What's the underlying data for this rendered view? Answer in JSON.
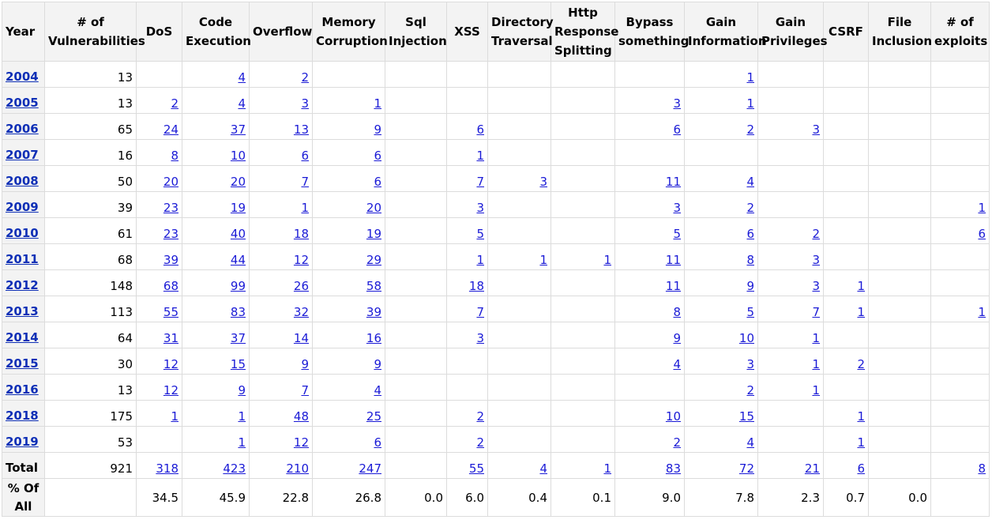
{
  "headers": [
    "Year",
    "# of Vulnerabilities",
    "DoS",
    "Code Execution",
    "Overflow",
    "Memory Corruption",
    "Sql Injection",
    "XSS",
    "Directory Traversal",
    "Http Response Splitting",
    "Bypass something",
    "Gain Information",
    "Gain Privileges",
    "CSRF",
    "File Inclusion",
    "# of exploits"
  ],
  "rows": [
    {
      "year": "2004",
      "cells": [
        "13",
        "",
        "4",
        "2",
        "",
        "",
        "",
        "",
        "",
        "",
        "1",
        "",
        "",
        "",
        ""
      ]
    },
    {
      "year": "2005",
      "cells": [
        "13",
        "2",
        "4",
        "3",
        "1",
        "",
        "",
        "",
        "",
        "3",
        "1",
        "",
        "",
        "",
        ""
      ]
    },
    {
      "year": "2006",
      "cells": [
        "65",
        "24",
        "37",
        "13",
        "9",
        "",
        "6",
        "",
        "",
        "6",
        "2",
        "3",
        "",
        "",
        ""
      ]
    },
    {
      "year": "2007",
      "cells": [
        "16",
        "8",
        "10",
        "6",
        "6",
        "",
        "1",
        "",
        "",
        "",
        "",
        "",
        "",
        "",
        ""
      ]
    },
    {
      "year": "2008",
      "cells": [
        "50",
        "20",
        "20",
        "7",
        "6",
        "",
        "7",
        "3",
        "",
        "11",
        "4",
        "",
        "",
        "",
        ""
      ]
    },
    {
      "year": "2009",
      "cells": [
        "39",
        "23",
        "19",
        "1",
        "20",
        "",
        "3",
        "",
        "",
        "3",
        "2",
        "",
        "",
        "",
        "1"
      ]
    },
    {
      "year": "2010",
      "cells": [
        "61",
        "23",
        "40",
        "18",
        "19",
        "",
        "5",
        "",
        "",
        "5",
        "6",
        "2",
        "",
        "",
        "6"
      ]
    },
    {
      "year": "2011",
      "cells": [
        "68",
        "39",
        "44",
        "12",
        "29",
        "",
        "1",
        "1",
        "1",
        "11",
        "8",
        "3",
        "",
        "",
        ""
      ]
    },
    {
      "year": "2012",
      "cells": [
        "148",
        "68",
        "99",
        "26",
        "58",
        "",
        "18",
        "",
        "",
        "11",
        "9",
        "3",
        "1",
        "",
        ""
      ]
    },
    {
      "year": "2013",
      "cells": [
        "113",
        "55",
        "83",
        "32",
        "39",
        "",
        "7",
        "",
        "",
        "8",
        "5",
        "7",
        "1",
        "",
        "1"
      ]
    },
    {
      "year": "2014",
      "cells": [
        "64",
        "31",
        "37",
        "14",
        "16",
        "",
        "3",
        "",
        "",
        "9",
        "10",
        "1",
        "",
        "",
        ""
      ]
    },
    {
      "year": "2015",
      "cells": [
        "30",
        "12",
        "15",
        "9",
        "9",
        "",
        "",
        "",
        "",
        "4",
        "3",
        "1",
        "2",
        "",
        ""
      ]
    },
    {
      "year": "2016",
      "cells": [
        "13",
        "12",
        "9",
        "7",
        "4",
        "",
        "",
        "",
        "",
        "",
        "2",
        "1",
        "",
        "",
        ""
      ]
    },
    {
      "year": "2018",
      "cells": [
        "175",
        "1",
        "1",
        "48",
        "25",
        "",
        "2",
        "",
        "",
        "10",
        "15",
        "",
        "1",
        "",
        ""
      ]
    },
    {
      "year": "2019",
      "cells": [
        "53",
        "",
        "1",
        "12",
        "6",
        "",
        "2",
        "",
        "",
        "2",
        "4",
        "",
        "1",
        "",
        ""
      ]
    }
  ],
  "total": {
    "label": "Total",
    "cells": [
      "921",
      "318",
      "423",
      "210",
      "247",
      "",
      "55",
      "4",
      "1",
      "83",
      "72",
      "21",
      "6",
      "",
      "8"
    ]
  },
  "percent": {
    "label": "% Of All",
    "cells": [
      "",
      "34.5",
      "45.9",
      "22.8",
      "26.8",
      "0.0",
      "6.0",
      "0.4",
      "0.1",
      "9.0",
      "7.8",
      "2.3",
      "0.7",
      "0.0",
      ""
    ]
  },
  "colors": {
    "link": "#1a1ad6",
    "year_link": "#0e2fb6",
    "header_bg": "#f3f3f3",
    "border": "#dcdcdc"
  }
}
